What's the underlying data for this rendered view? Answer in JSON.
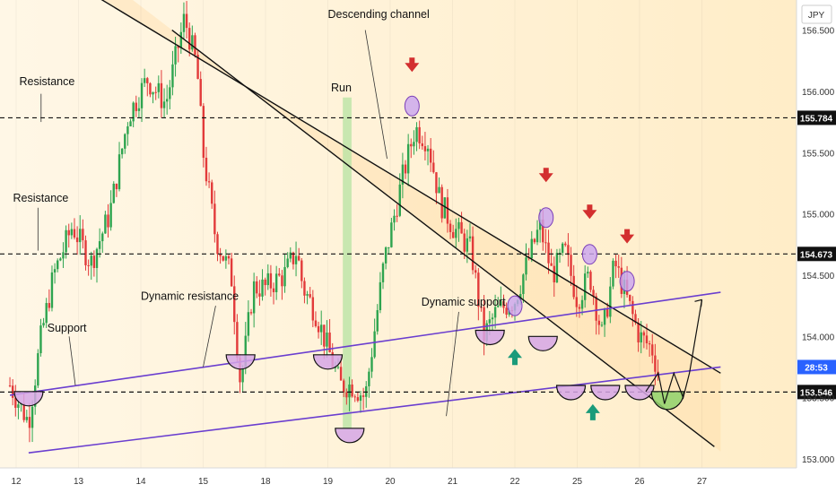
{
  "chart_data": {
    "type": "candlestick",
    "currency": "JPY",
    "y_range": [
      153.0,
      156.7
    ],
    "y_ticks": [
      "156.500",
      "156.000",
      "155.500",
      "155.000",
      "154.500",
      "154.000",
      "153.500",
      "153.000"
    ],
    "x_range": [
      12,
      27.2
    ],
    "x_ticks": [
      {
        "label": "12",
        "x": 12
      },
      {
        "label": "13",
        "x": 13
      },
      {
        "label": "14",
        "x": 14
      },
      {
        "label": "15",
        "x": 15
      },
      {
        "label": "18",
        "x": 16
      },
      {
        "label": "19",
        "x": 17
      },
      {
        "label": "20",
        "x": 18
      },
      {
        "label": "21",
        "x": 19
      },
      {
        "label": "22",
        "x": 20
      },
      {
        "label": "25",
        "x": 21
      },
      {
        "label": "26",
        "x": 22
      },
      {
        "label": "27",
        "x": 23
      }
    ],
    "levels": [
      {
        "price": 155.784,
        "label": "155.784"
      },
      {
        "price": 154.673,
        "label": "154.673"
      },
      {
        "price": 153.546,
        "label": "153.546"
      }
    ],
    "last_price_badge": {
      "price": 153.75,
      "label": "28:53"
    },
    "price_path": [
      [
        11.9,
        153.6
      ],
      [
        12.2,
        153.3
      ],
      [
        12.4,
        154.0
      ],
      [
        12.6,
        154.5
      ],
      [
        12.9,
        154.9
      ],
      [
        13.2,
        154.6
      ],
      [
        13.5,
        155.0
      ],
      [
        13.8,
        155.8
      ],
      [
        14.1,
        156.1
      ],
      [
        14.4,
        155.9
      ],
      [
        14.7,
        156.6
      ],
      [
        14.9,
        156.2
      ],
      [
        15.0,
        155.5
      ],
      [
        15.2,
        154.8
      ],
      [
        15.45,
        154.5
      ],
      [
        15.6,
        153.6
      ],
      [
        15.8,
        154.4
      ],
      [
        16.0,
        154.4
      ],
      [
        16.3,
        154.5
      ],
      [
        16.5,
        154.7
      ],
      [
        16.6,
        154.4
      ],
      [
        16.8,
        154.2
      ],
      [
        17.0,
        153.9
      ],
      [
        17.2,
        153.6
      ],
      [
        17.4,
        153.6
      ],
      [
        17.6,
        153.5
      ],
      [
        17.9,
        154.6
      ],
      [
        18.2,
        155.3
      ],
      [
        18.4,
        155.7
      ],
      [
        18.6,
        155.6
      ],
      [
        18.8,
        155.1
      ],
      [
        19.0,
        154.9
      ],
      [
        19.3,
        154.7
      ],
      [
        19.5,
        154.0
      ],
      [
        19.7,
        154.2
      ],
      [
        20.0,
        154.3
      ],
      [
        20.2,
        154.6
      ],
      [
        20.4,
        154.9
      ],
      [
        20.6,
        154.5
      ],
      [
        20.8,
        154.7
      ],
      [
        21.0,
        154.3
      ],
      [
        21.2,
        154.5
      ],
      [
        21.4,
        154.0
      ],
      [
        21.6,
        154.6
      ],
      [
        21.8,
        154.3
      ],
      [
        22.0,
        154.0
      ],
      [
        22.2,
        153.9
      ],
      [
        22.3,
        153.7
      ]
    ],
    "channel": {
      "upper": [
        [
          11.9,
          157.2
        ],
        [
          23.3,
          153.7
        ]
      ],
      "lower": [
        [
          14.5,
          156.5
        ],
        [
          23.2,
          153.1
        ]
      ]
    },
    "dynamic_resistance": [
      [
        11.9,
        153.52
      ],
      [
        23.3,
        154.36
      ]
    ],
    "dynamic_support": [
      [
        12.2,
        153.05
      ],
      [
        23.3,
        153.75
      ]
    ],
    "run_band": {
      "x0": 17.24,
      "x1": 17.38,
      "y0": 153.25,
      "y1": 155.95
    },
    "annotations": [
      {
        "text": "Resistance",
        "x": 12.05,
        "y": 156.05
      },
      {
        "text": "Resistance",
        "x": 11.95,
        "y": 155.1
      },
      {
        "text": "Support",
        "x": 12.5,
        "y": 154.04
      },
      {
        "text": "Dynamic resistance",
        "x": 14.0,
        "y": 154.3
      },
      {
        "text": "Run",
        "x": 17.05,
        "y": 156.0
      },
      {
        "text": "Descending channel",
        "x": 17.0,
        "y": 156.6
      },
      {
        "text": "Dynamic support",
        "x": 18.5,
        "y": 154.25
      }
    ]
  }
}
